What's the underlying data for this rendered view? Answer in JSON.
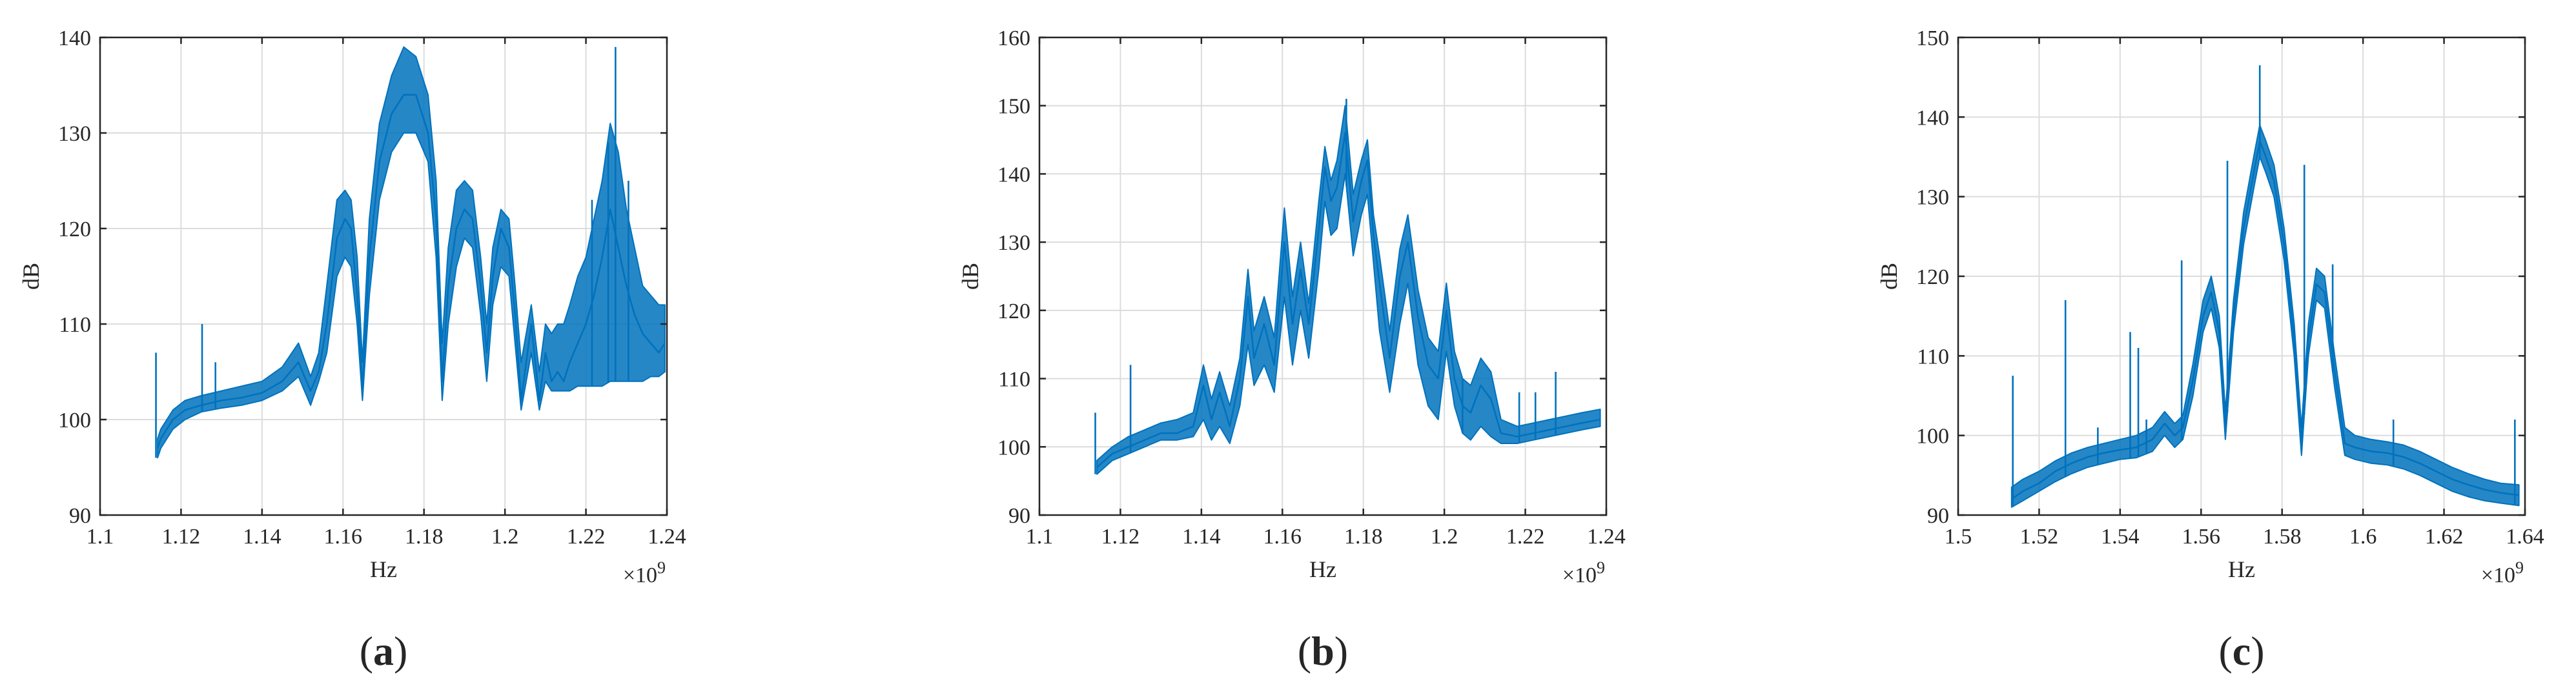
{
  "colors": {
    "series": "#0072BD",
    "axis": "#262626",
    "grid": "#dcdcdc"
  },
  "chart_data": [
    {
      "type": "line",
      "panel_label": "a",
      "xlabel": "Hz",
      "ylabel": "dB",
      "x_exponent": "×10",
      "x_exponent_power": "9",
      "xlim": [
        1.1,
        1.24
      ],
      "ylim": [
        90,
        140
      ],
      "xticks": [
        1.1,
        1.12,
        1.14,
        1.16,
        1.18,
        1.2,
        1.22,
        1.24
      ],
      "xtick_labels": [
        "1.1",
        "1.12",
        "1.14",
        "1.16",
        "1.18",
        "1.2",
        "1.22",
        "1.24"
      ],
      "yticks": [
        90,
        100,
        110,
        120,
        130,
        140
      ],
      "ytick_labels": [
        "90",
        "100",
        "110",
        "120",
        "130",
        "140"
      ],
      "grid": true,
      "series": [
        {
          "x": [
            1.1142,
            1.115,
            1.118,
            1.121,
            1.125,
            1.13,
            1.135,
            1.14,
            1.145,
            1.149,
            1.152,
            1.154,
            1.156,
            1.1585,
            1.1605,
            1.162,
            1.1635,
            1.1648,
            1.1665,
            1.169,
            1.172,
            1.175,
            1.178,
            1.181,
            1.183,
            1.1845,
            1.186,
            1.188,
            1.19,
            1.192,
            1.194,
            1.1955,
            1.197,
            1.199,
            1.201,
            1.2025,
            1.204,
            1.2065,
            1.2085,
            1.21,
            1.2115,
            1.213,
            1.2145,
            1.216,
            1.218,
            1.22,
            1.222,
            1.224,
            1.226,
            1.228,
            1.23,
            1.232,
            1.234,
            1.236,
            1.238,
            1.2395
          ],
          "y": [
            97,
            98,
            100,
            101,
            101.5,
            102,
            102.3,
            102.8,
            104,
            106,
            103,
            105,
            110,
            119,
            121,
            120,
            113,
            103,
            117,
            127,
            132,
            134,
            134,
            130,
            121,
            104,
            114,
            120,
            122,
            121,
            114,
            107,
            115,
            120,
            118,
            111,
            102,
            110,
            102,
            107,
            104,
            105,
            104,
            106,
            108,
            110,
            113,
            117,
            122,
            118,
            114,
            111,
            109,
            108,
            107,
            108
          ],
          "upper": [
            98,
            99,
            101,
            102,
            102.5,
            103,
            103.5,
            104,
            105.5,
            108,
            104.5,
            107,
            114,
            123,
            124,
            123,
            117,
            106,
            121,
            131,
            136,
            139,
            138,
            134,
            125,
            108,
            118,
            124,
            125,
            124,
            117,
            110,
            118,
            122,
            121,
            114,
            106,
            112,
            105,
            110,
            109,
            110,
            110,
            112,
            115,
            117,
            121,
            125,
            131,
            128,
            122,
            118,
            114,
            113,
            112,
            112
          ],
          "lower": [
            96,
            97,
            99,
            100,
            100.8,
            101.2,
            101.5,
            102,
            103,
            104.5,
            101.5,
            104,
            107,
            115,
            117,
            116,
            110,
            102,
            113,
            123,
            128,
            130,
            130,
            127,
            117,
            102,
            110,
            116,
            119,
            118,
            111,
            104,
            112,
            116,
            115,
            108,
            101,
            107,
            101,
            104,
            103,
            103,
            103,
            103,
            103.5,
            103.5,
            103.5,
            103.5,
            104,
            104,
            104,
            104,
            104,
            104.5,
            104.5,
            105
          ],
          "spikes": [
            {
              "x": 1.1138,
              "y": 107
            },
            {
              "x": 1.1252,
              "y": 110
            },
            {
              "x": 1.1285,
              "y": 106
            },
            {
              "x": 1.2215,
              "y": 123
            },
            {
              "x": 1.2255,
              "y": 129
            },
            {
              "x": 1.2273,
              "y": 139
            },
            {
              "x": 1.2305,
              "y": 125
            }
          ]
        }
      ]
    },
    {
      "type": "line",
      "panel_label": "b",
      "xlabel": "Hz",
      "ylabel": "dB",
      "x_exponent": "×10",
      "x_exponent_power": "9",
      "xlim": [
        1.1,
        1.24
      ],
      "ylim": [
        90,
        160
      ],
      "xticks": [
        1.1,
        1.12,
        1.14,
        1.16,
        1.18,
        1.2,
        1.22,
        1.24
      ],
      "xtick_labels": [
        "1.1",
        "1.12",
        "1.14",
        "1.16",
        "1.18",
        "1.2",
        "1.22",
        "1.24"
      ],
      "yticks": [
        90,
        100,
        110,
        120,
        130,
        140,
        150,
        160
      ],
      "ytick_labels": [
        "90",
        "100",
        "110",
        "120",
        "130",
        "140",
        "150",
        "160"
      ],
      "grid": true,
      "series": [
        {
          "x": [
            1.1142,
            1.118,
            1.122,
            1.126,
            1.13,
            1.134,
            1.138,
            1.1405,
            1.1425,
            1.1445,
            1.147,
            1.1495,
            1.1515,
            1.153,
            1.1555,
            1.158,
            1.1605,
            1.1625,
            1.1645,
            1.1665,
            1.169,
            1.1705,
            1.172,
            1.1735,
            1.1755,
            1.1775,
            1.1795,
            1.181,
            1.1825,
            1.184,
            1.1865,
            1.189,
            1.191,
            1.1935,
            1.196,
            1.1985,
            1.2005,
            1.2025,
            1.2045,
            1.2065,
            1.209,
            1.2115,
            1.214,
            1.218,
            1.222,
            1.226,
            1.23,
            1.234,
            1.2385
          ],
          "y": [
            97,
            99,
            100,
            101,
            102,
            102,
            103,
            109,
            104,
            108,
            103,
            110,
            122,
            113,
            118,
            112,
            130,
            118,
            126,
            118,
            132,
            141,
            136,
            138,
            146,
            133,
            139,
            142,
            131,
            124,
            113,
            125,
            130,
            119,
            112,
            110,
            120,
            110,
            106,
            105,
            109,
            107,
            102,
            101.5,
            102,
            102.5,
            103,
            103.5,
            104
          ],
          "upper": [
            98,
            100,
            101.5,
            102.5,
            103.5,
            104,
            105,
            112,
            107,
            111,
            106,
            113,
            126,
            117,
            122,
            116,
            135,
            122,
            130,
            121,
            136,
            144,
            139,
            142,
            150,
            137,
            142,
            145,
            134,
            128,
            117,
            129,
            134,
            123,
            116,
            114,
            124,
            114,
            110,
            109,
            113,
            111,
            104,
            103,
            103.5,
            104,
            104.5,
            105,
            105.5
          ],
          "lower": [
            96,
            98,
            99,
            100,
            101,
            101,
            101.5,
            104,
            101,
            103,
            100.5,
            106,
            115,
            109,
            112,
            108,
            122,
            112,
            120,
            113,
            126,
            136,
            131,
            132,
            140,
            128,
            134,
            137,
            127,
            117,
            108,
            118,
            124,
            112,
            106,
            104,
            114,
            106,
            102,
            101,
            103,
            101.5,
            100.5,
            100.5,
            101,
            101.5,
            102,
            102.5,
            103
          ],
          "spikes": [
            {
              "x": 1.1138,
              "y": 105
            },
            {
              "x": 1.1225,
              "y": 112
            },
            {
              "x": 1.1758,
              "y": 151
            },
            {
              "x": 1.2045,
              "y": 110
            },
            {
              "x": 1.2185,
              "y": 108
            },
            {
              "x": 1.2225,
              "y": 108
            },
            {
              "x": 1.2275,
              "y": 111
            }
          ]
        }
      ]
    },
    {
      "type": "line",
      "panel_label": "c",
      "xlabel": "Hz",
      "ylabel": "dB",
      "x_exponent": "×10",
      "x_exponent_power": "9",
      "xlim": [
        1.5,
        1.64
      ],
      "ylim": [
        90,
        150
      ],
      "xticks": [
        1.5,
        1.52,
        1.54,
        1.56,
        1.58,
        1.6,
        1.62,
        1.64
      ],
      "xtick_labels": [
        "1.5",
        "1.52",
        "1.54",
        "1.56",
        "1.58",
        "1.6",
        "1.62",
        "1.64"
      ],
      "yticks": [
        90,
        100,
        110,
        120,
        130,
        140,
        150
      ],
      "ytick_labels": [
        "90",
        "100",
        "110",
        "120",
        "130",
        "140",
        "150"
      ],
      "grid": true,
      "series": [
        {
          "x": [
            1.5132,
            1.516,
            1.52,
            1.524,
            1.528,
            1.532,
            1.536,
            1.54,
            1.544,
            1.548,
            1.551,
            1.5535,
            1.5555,
            1.558,
            1.5605,
            1.5625,
            1.5645,
            1.566,
            1.568,
            1.5705,
            1.573,
            1.5745,
            1.576,
            1.578,
            1.5805,
            1.583,
            1.5848,
            1.5865,
            1.5885,
            1.5905,
            1.593,
            1.5955,
            1.598,
            1.602,
            1.606,
            1.61,
            1.614,
            1.618,
            1.622,
            1.626,
            1.63,
            1.634,
            1.6385
          ],
          "y": [
            92,
            93,
            94,
            95.5,
            96.5,
            97.3,
            97.8,
            98.2,
            98.5,
            99.5,
            101.5,
            100,
            101,
            107,
            115,
            118,
            113,
            101,
            115,
            126,
            133,
            137,
            135,
            132,
            124,
            112,
            99,
            112,
            119,
            118,
            108,
            99,
            98.5,
            98,
            97.8,
            97.3,
            96.5,
            95.5,
            94.5,
            93.8,
            93.2,
            92.8,
            92.5
          ],
          "upper": [
            93.5,
            94.5,
            95.5,
            96.8,
            97.8,
            98.5,
            99,
            99.5,
            100,
            101,
            103,
            101.5,
            102.5,
            109,
            117,
            120,
            115,
            103,
            117,
            128,
            135,
            139,
            137,
            134,
            126,
            114,
            101,
            114,
            121,
            120,
            110,
            101,
            100,
            99.5,
            99.2,
            98.8,
            98,
            97,
            96,
            95.2,
            94.5,
            94,
            93.8
          ],
          "lower": [
            91,
            91.8,
            93,
            94.2,
            95.2,
            96,
            96.5,
            97,
            97.2,
            98,
            100,
            98.5,
            99.5,
            105,
            113,
            116,
            111,
            99.5,
            113,
            124,
            131,
            135,
            133,
            130,
            122,
            110,
            97.5,
            110,
            117,
            116,
            106,
            97.5,
            97,
            96.5,
            96.3,
            95.8,
            95,
            94,
            93,
            92.3,
            91.8,
            91.5,
            91.2
          ],
          "spikes": [
            {
              "x": 1.5135,
              "y": 107.5
            },
            {
              "x": 1.5265,
              "y": 117
            },
            {
              "x": 1.5345,
              "y": 101
            },
            {
              "x": 1.5425,
              "y": 113
            },
            {
              "x": 1.5445,
              "y": 111
            },
            {
              "x": 1.5465,
              "y": 102
            },
            {
              "x": 1.5552,
              "y": 122
            },
            {
              "x": 1.5665,
              "y": 134.5
            },
            {
              "x": 1.5745,
              "y": 146.5
            },
            {
              "x": 1.5855,
              "y": 134
            },
            {
              "x": 1.5925,
              "y": 121.5
            },
            {
              "x": 1.6075,
              "y": 102
            },
            {
              "x": 1.6375,
              "y": 102
            }
          ]
        }
      ]
    }
  ]
}
